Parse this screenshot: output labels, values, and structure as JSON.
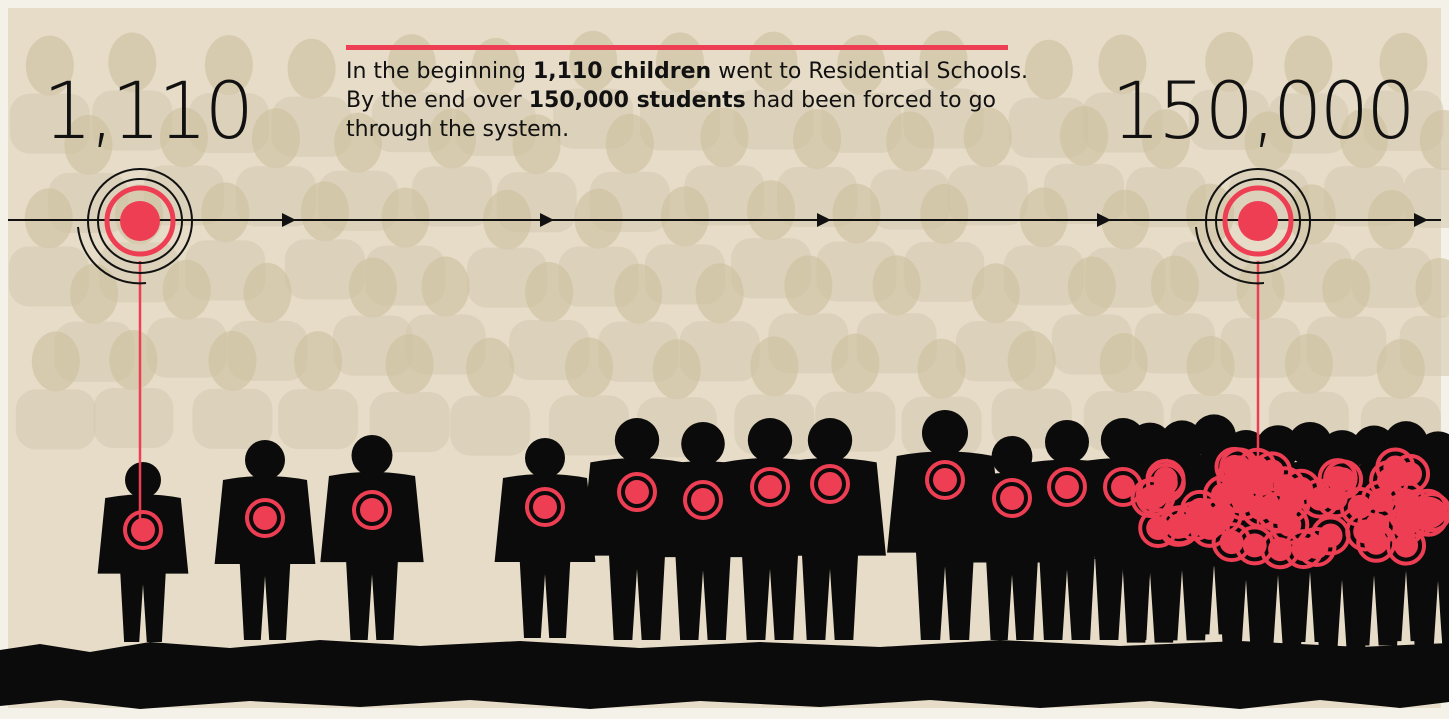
{
  "start_count": "1,110",
  "end_count": "150,000",
  "paragraph": {
    "lines": [
      [
        {
          "text": "In the beginning ",
          "bold": false
        },
        {
          "text": "1,110 children",
          "bold": true
        },
        {
          "text": " went to Residential Schools.",
          "bold": false
        }
      ],
      [
        {
          "text": "By the end over ",
          "bold": false
        },
        {
          "text": "150,000 students",
          "bold": true
        },
        {
          "text": " had been forced to go",
          "bold": false
        }
      ],
      [
        {
          "text": "through the system.",
          "bold": false
        }
      ]
    ]
  }
}
